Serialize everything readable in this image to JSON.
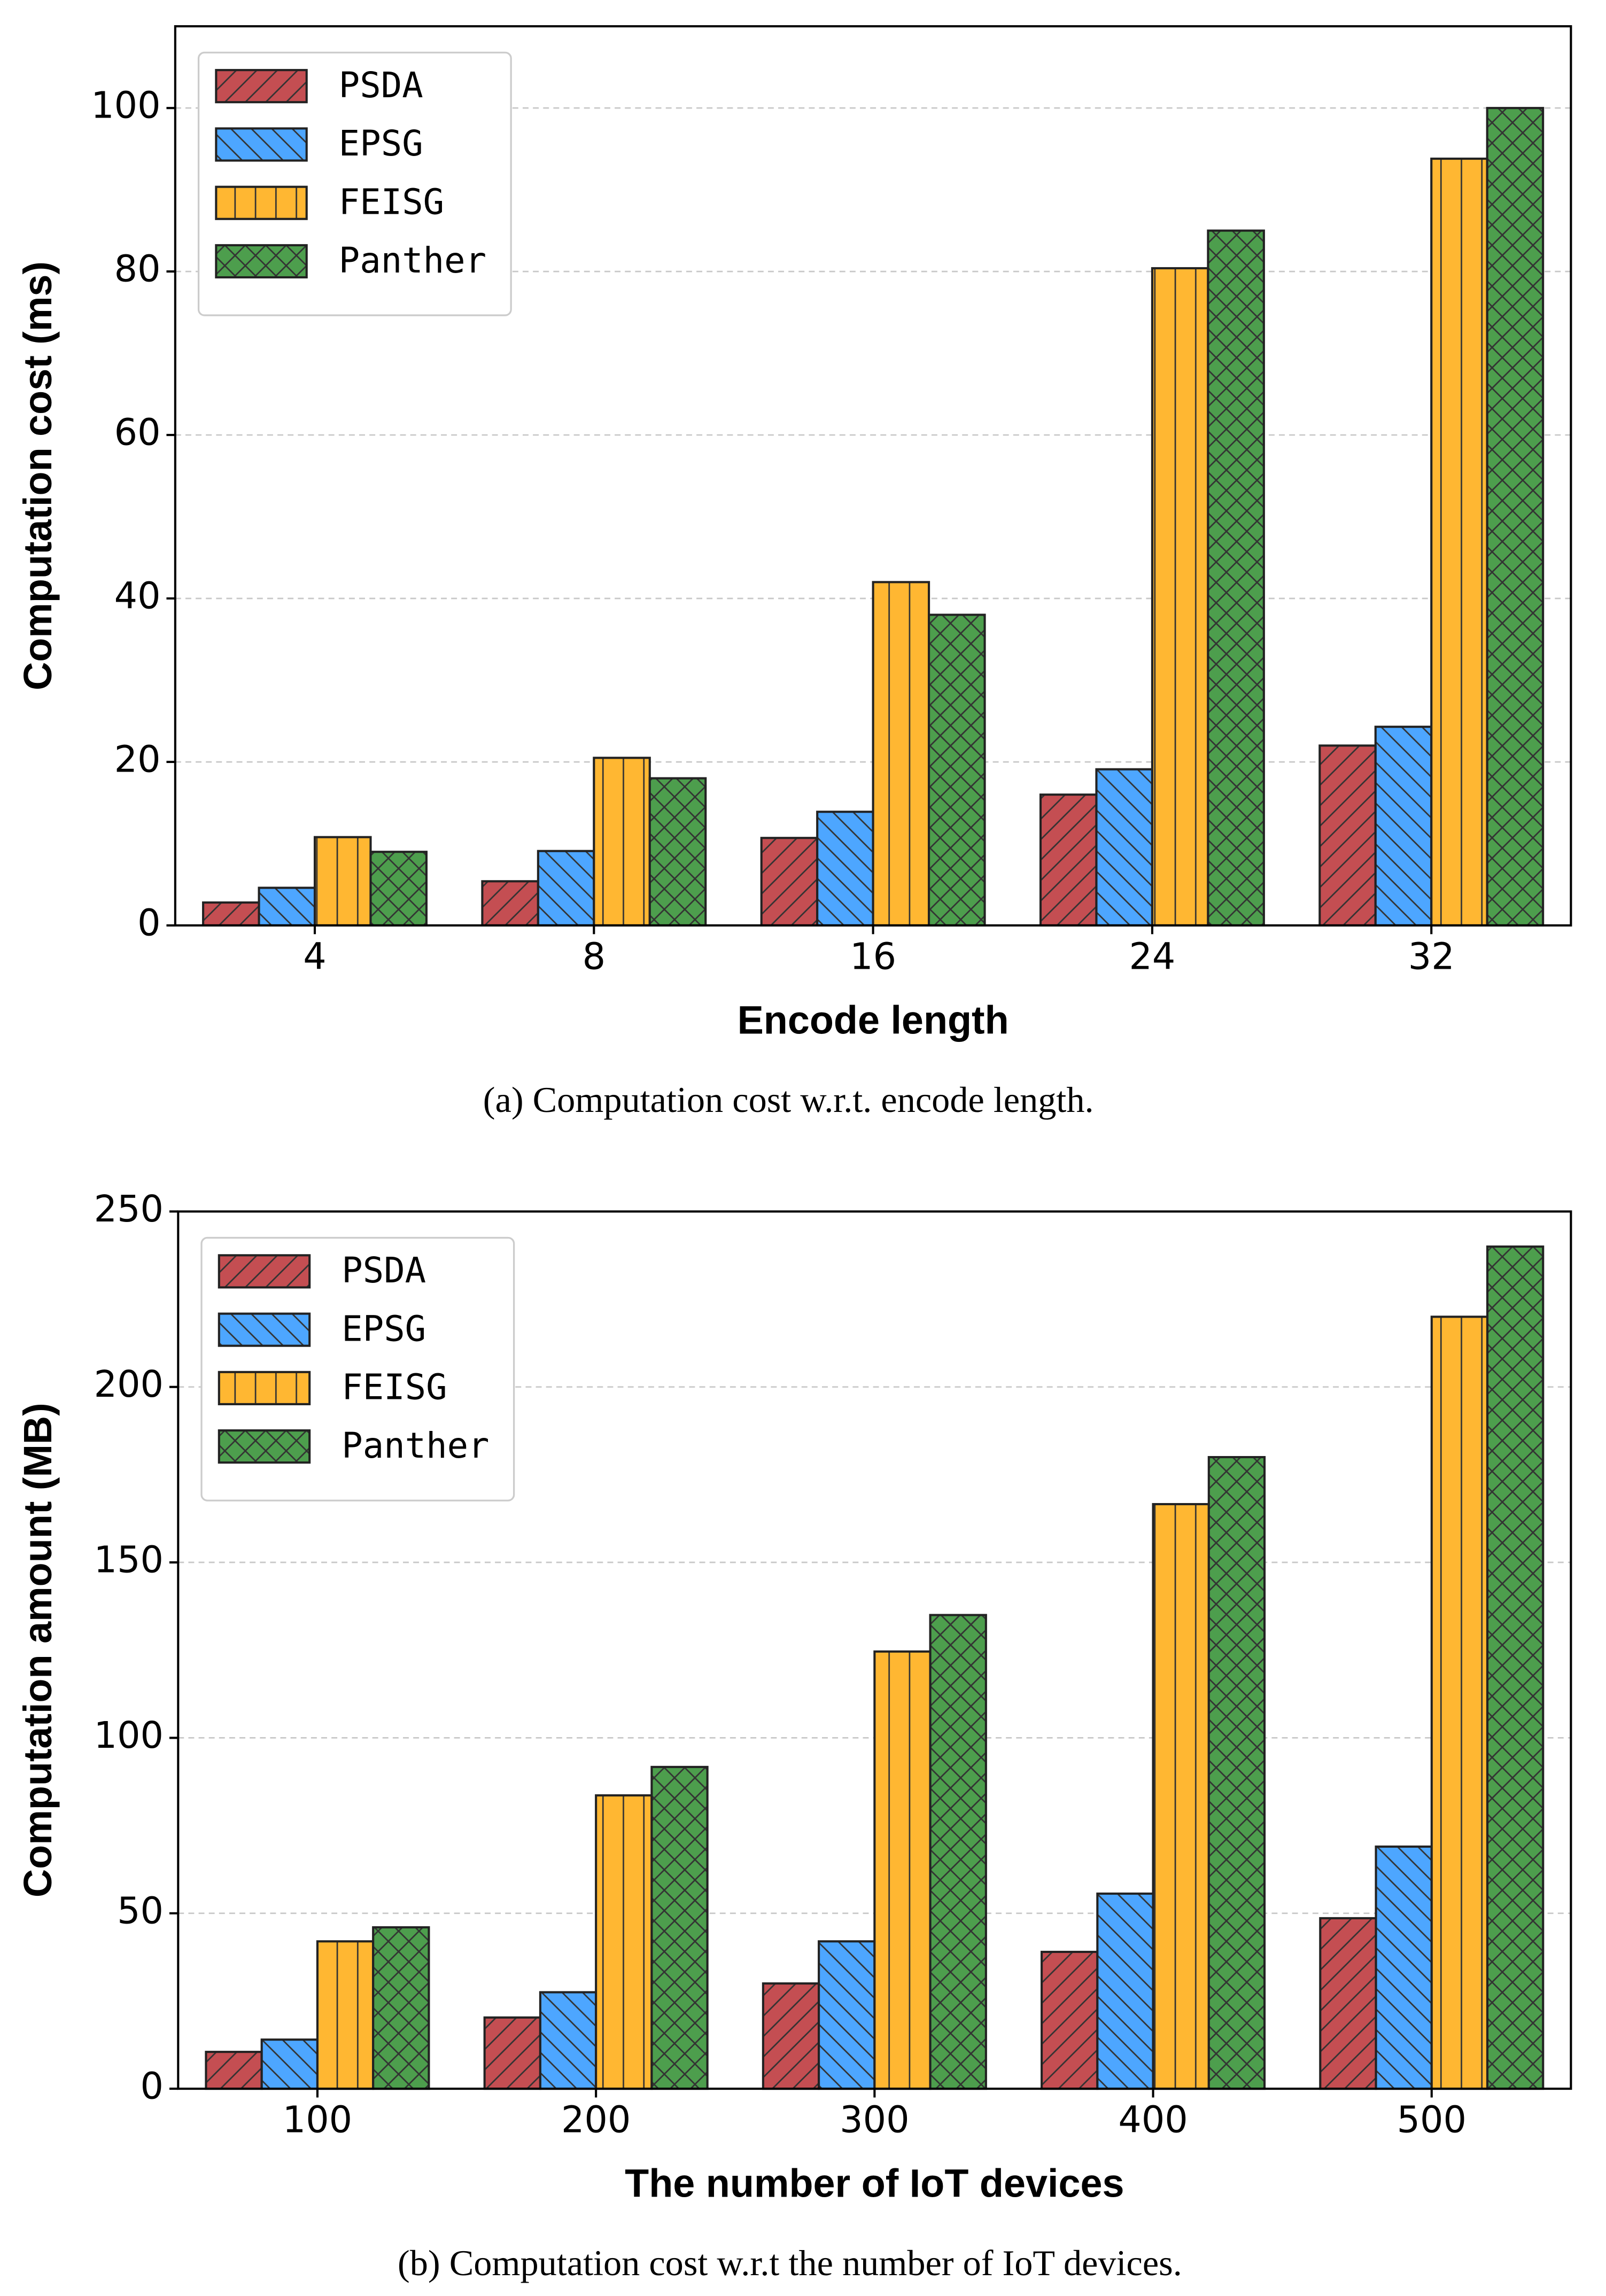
{
  "chart_data": [
    {
      "type": "bar",
      "caption": "(a) Computation cost w.r.t. encode length.",
      "xlabel": "Encode length",
      "ylabel": "Computation cost (ms)",
      "categories": [
        "4",
        "8",
        "16",
        "24",
        "32"
      ],
      "series": [
        {
          "name": "PSDA",
          "color": "#c44e52",
          "hatch": "/",
          "values": [
            2.8,
            5.4,
            10.7,
            16,
            22
          ]
        },
        {
          "name": "EPSG",
          "color": "#4da6ff",
          "hatch": "\\",
          "values": [
            4.6,
            9.1,
            13.9,
            19.1,
            24.3
          ]
        },
        {
          "name": "FEISG",
          "color": "#ffb732",
          "hatch": "|",
          "values": [
            10.8,
            20.5,
            42,
            80.4,
            93.8
          ]
        },
        {
          "name": "Panther",
          "color": "#4d9e4d",
          "hatch": "x",
          "values": [
            9,
            18,
            38,
            85,
            100
          ]
        }
      ],
      "ylim": [
        0,
        110
      ],
      "yticks": [
        0,
        20,
        40,
        60,
        80,
        100
      ],
      "grid": true,
      "legend": "upper left"
    },
    {
      "type": "bar",
      "caption": "(b) Computation cost w.r.t the number of IoT devices.",
      "xlabel": "The number of IoT devices",
      "ylabel": "Computation amount (MB)",
      "categories": [
        "100",
        "200",
        "300",
        "400",
        "500"
      ],
      "series": [
        {
          "name": "PSDA",
          "color": "#c44e52",
          "hatch": "/",
          "values": [
            10.5,
            20.3,
            30,
            39,
            48.6
          ]
        },
        {
          "name": "EPSG",
          "color": "#4da6ff",
          "hatch": "\\",
          "values": [
            14,
            27.5,
            42,
            55.6,
            69
          ]
        },
        {
          "name": "FEISG",
          "color": "#ffb732",
          "hatch": "|",
          "values": [
            42,
            83.6,
            124.6,
            166.6,
            220
          ]
        },
        {
          "name": "Panther",
          "color": "#4d9e4d",
          "hatch": "x",
          "values": [
            46,
            91.7,
            135,
            180,
            240
          ]
        }
      ],
      "ylim": [
        0,
        250
      ],
      "yticks": [
        0,
        50,
        100,
        150,
        200,
        250
      ],
      "grid": true,
      "legend": "upper left"
    }
  ]
}
